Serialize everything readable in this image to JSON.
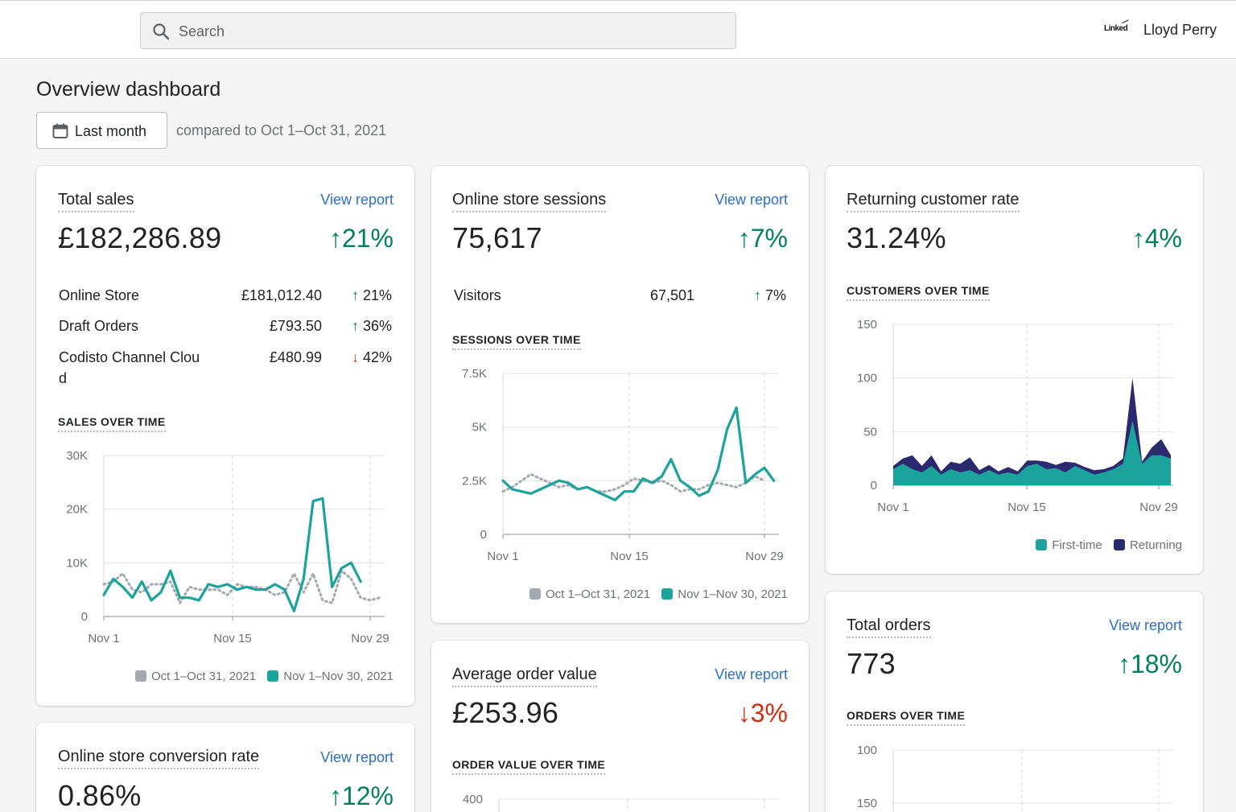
{
  "topbar": {
    "search_placeholder": "Search",
    "brand": "Linked",
    "user_name": "Lloyd Perry"
  },
  "page": {
    "title": "Overview dashboard",
    "date_button": "Last month",
    "compare_text": "compared to Oct 1–Oct 31, 2021"
  },
  "colors": {
    "current": "#1ba39c",
    "previous": "#a3a9b0",
    "first_time": "#1ba39c",
    "returning": "#2c2a6f",
    "up": "#008060",
    "down": "#d72c0d",
    "link": "#2c6ecb"
  },
  "cards": {
    "total_sales": {
      "title": "Total sales",
      "link": "View report",
      "value": "£182,286.89",
      "change": "↑21%",
      "rows": [
        {
          "label": "Online Store",
          "value": "£181,012.40",
          "arrow": "↑",
          "pct": "21%",
          "dir": "up"
        },
        {
          "label": "Draft Orders",
          "value": "£793.50",
          "arrow": "↑",
          "pct": "36%",
          "dir": "up"
        },
        {
          "label": "Codisto Channel Clou d",
          "value": "£480.99",
          "arrow": "↓",
          "pct": "42%",
          "dir": "down"
        }
      ],
      "chart_title": "SALES OVER TIME",
      "legend": [
        "Oct 1–Oct 31, 2021",
        "Nov 1–Nov 30, 2021"
      ]
    },
    "sessions": {
      "title": "Online store sessions",
      "link": "View report",
      "value": "75,617",
      "change": "↑7%",
      "rows": [
        {
          "label": "Visitors",
          "value": "67,501",
          "arrow": "↑",
          "pct": "7%"
        }
      ],
      "chart_title": "SESSIONS OVER TIME",
      "legend": [
        "Oct 1–Oct 31, 2021",
        "Nov 1–Nov 30, 2021"
      ]
    },
    "returning": {
      "title": "Returning customer rate",
      "value": "31.24%",
      "change": "↑4%",
      "chart_title": "CUSTOMERS OVER TIME",
      "legend": [
        "First-time",
        "Returning"
      ]
    },
    "aov": {
      "title": "Average order value",
      "link": "View report",
      "value": "£253.96",
      "change": "↓3%",
      "chart_title": "ORDER VALUE OVER TIME"
    },
    "orders": {
      "title": "Total orders",
      "link": "View report",
      "value": "773",
      "change": "↑18%",
      "chart_title": "ORDERS OVER TIME"
    },
    "conversion": {
      "title": "Online store conversion rate",
      "link": "View report",
      "value": "0.86%",
      "change": "↑12%"
    }
  },
  "chart_data": [
    {
      "id": "sales",
      "type": "line",
      "title": "SALES OVER TIME",
      "x_ticks": [
        "Nov 1",
        "Nov 15",
        "Nov 29"
      ],
      "ylim": [
        0,
        30000
      ],
      "y_ticks": [
        0,
        10000,
        20000,
        30000
      ],
      "y_tick_labels": [
        "0",
        "10K",
        "20K",
        "30K"
      ],
      "series": [
        {
          "name": "Oct 1–Oct 31, 2021",
          "style": "dotted",
          "values": [
            6000,
            6500,
            8000,
            5000,
            4500,
            6000,
            6000,
            6500,
            2500,
            5500,
            5000,
            5000,
            5000,
            4000,
            6000,
            5500,
            5500,
            5000,
            4000,
            4500,
            8000,
            4500,
            8000,
            3000,
            2500,
            8500,
            7000,
            3500,
            3000,
            3500
          ]
        },
        {
          "name": "Nov 1–Nov 30, 2021",
          "style": "solid",
          "values": [
            4000,
            7000,
            5500,
            3500,
            6500,
            3000,
            4500,
            8500,
            3500,
            3500,
            3000,
            6000,
            5500,
            6000,
            5000,
            5500,
            5000,
            5000,
            6000,
            5000,
            1000,
            7000,
            21500,
            22000,
            5500,
            9000,
            10000,
            6500
          ]
        }
      ]
    },
    {
      "id": "sessions",
      "type": "line",
      "title": "SESSIONS OVER TIME",
      "x_ticks": [
        "Nov 1",
        "Nov 15",
        "Nov 29"
      ],
      "ylim": [
        0,
        7500
      ],
      "y_ticks": [
        0,
        2500,
        5000,
        7500
      ],
      "y_tick_labels": [
        "0",
        "2.5K",
        "5K",
        "7.5K"
      ],
      "series": [
        {
          "name": "Oct 1–Oct 31, 2021",
          "style": "dotted",
          "values": [
            2000,
            2200,
            2500,
            2800,
            2600,
            2400,
            2200,
            2300,
            2100,
            2200,
            2000,
            2000,
            2100,
            2300,
            2600,
            2500,
            2400,
            2500,
            2300,
            2000,
            2100,
            2100,
            2300,
            2400,
            2300,
            2200,
            2400,
            2700,
            2500
          ]
        },
        {
          "name": "Nov 1–Nov 30, 2021",
          "style": "solid",
          "values": [
            2500,
            2100,
            2000,
            1900,
            2100,
            2300,
            2500,
            2400,
            2100,
            2200,
            2000,
            1800,
            1600,
            2000,
            2000,
            2600,
            2400,
            2700,
            3500,
            2500,
            2200,
            1800,
            2000,
            3000,
            4900,
            5900,
            2400,
            2800,
            3100,
            2500
          ]
        }
      ]
    },
    {
      "id": "customers",
      "type": "area",
      "title": "CUSTOMERS OVER TIME",
      "x_ticks": [
        "Nov 1",
        "Nov 15",
        "Nov 29"
      ],
      "ylim": [
        0,
        150
      ],
      "y_ticks": [
        0,
        50,
        100,
        150
      ],
      "y_tick_labels": [
        "0",
        "50",
        "100",
        "150"
      ],
      "series": [
        {
          "name": "First-time",
          "values": [
            15,
            20,
            15,
            12,
            18,
            10,
            15,
            12,
            14,
            10,
            14,
            10,
            12,
            10,
            18,
            20,
            15,
            16,
            12,
            18,
            14,
            10,
            12,
            15,
            20,
            60,
            20,
            28,
            28,
            25
          ]
        },
        {
          "name": "Returning",
          "values": [
            3,
            5,
            13,
            6,
            10,
            3,
            7,
            8,
            12,
            4,
            5,
            3,
            5,
            3,
            5,
            3,
            7,
            3,
            10,
            3,
            3,
            4,
            3,
            3,
            5,
            40,
            2,
            7,
            15,
            3
          ]
        }
      ]
    },
    {
      "id": "order_value",
      "type": "line",
      "title": "ORDER VALUE OVER TIME",
      "y_ticks": [
        400
      ],
      "y_tick_labels": [
        "400"
      ],
      "series": []
    },
    {
      "id": "orders",
      "type": "line",
      "title": "ORDERS OVER TIME",
      "y_ticks": [
        100,
        150
      ],
      "y_tick_labels": [
        "100",
        "150"
      ],
      "series": []
    }
  ]
}
